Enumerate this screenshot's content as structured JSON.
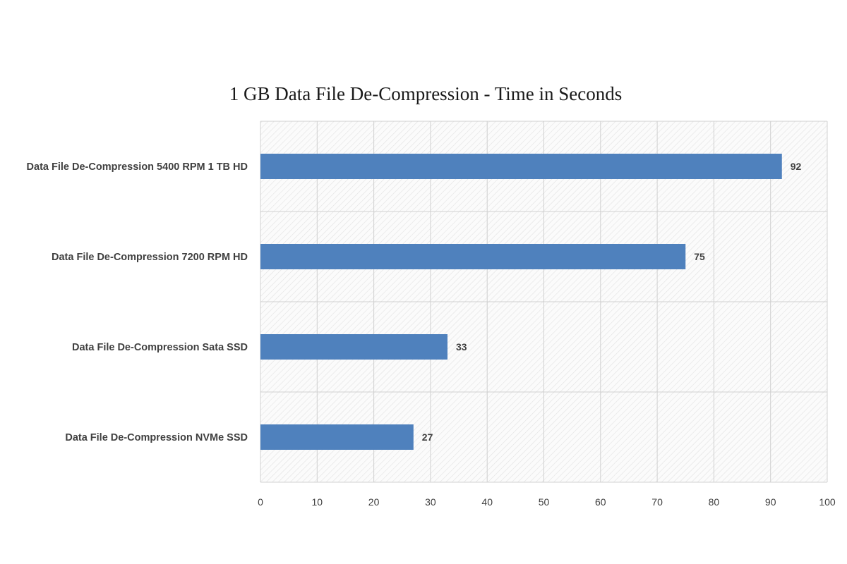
{
  "chart_data": {
    "type": "bar",
    "orientation": "horizontal",
    "title": "1 GB Data File De-Compression -  Time in Seconds",
    "categories": [
      "Data File De-Compression 5400 RPM 1 TB HD",
      "Data File De-Compression 7200 RPM HD",
      "Data File De-Compression Sata SSD",
      "Data File De-Compression NVMe SSD"
    ],
    "values": [
      92,
      75,
      33,
      27
    ],
    "data_labels": [
      "92",
      "75",
      "33",
      "27"
    ],
    "xlim": [
      0,
      100
    ],
    "x_ticks": [
      "0",
      "10",
      "20",
      "30",
      "40",
      "50",
      "60",
      "70",
      "80",
      "90",
      "100"
    ],
    "grid": true,
    "legend": "none",
    "colors": {
      "bar": "#4f81bd",
      "grid": "#d0d0d0",
      "plot_hatch": "#e2e2e2"
    }
  }
}
